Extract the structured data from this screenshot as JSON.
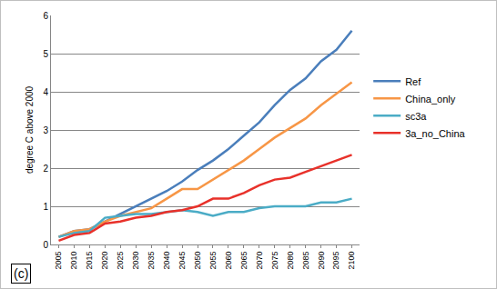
{
  "chart_data": {
    "type": "line",
    "y_label": "degree C above 2000",
    "annotations": [
      "(c)"
    ],
    "categories": [
      "2005",
      "2010",
      "2015",
      "2020",
      "2025",
      "2030",
      "2035",
      "2040",
      "2045",
      "2050",
      "2055",
      "2060",
      "2065",
      "2070",
      "2075",
      "2080",
      "2085",
      "2090",
      "2095",
      "2100"
    ],
    "series": [
      {
        "name": "Ref",
        "color": "#4a7ebb",
        "values": [
          0.2,
          0.35,
          0.4,
          0.6,
          0.8,
          1.0,
          1.2,
          1.4,
          1.65,
          1.95,
          2.2,
          2.5,
          2.85,
          3.2,
          3.65,
          4.05,
          4.35,
          4.8,
          5.1,
          5.6
        ]
      },
      {
        "name": "China_only",
        "color": "#f79646",
        "values": [
          0.2,
          0.35,
          0.4,
          0.6,
          0.75,
          0.85,
          0.95,
          1.2,
          1.45,
          1.45,
          1.7,
          1.95,
          2.2,
          2.5,
          2.8,
          3.05,
          3.3,
          3.65,
          3.95,
          4.25
        ]
      },
      {
        "name": "sc3a",
        "color": "#4bacc6",
        "values": [
          0.2,
          0.3,
          0.35,
          0.7,
          0.75,
          0.8,
          0.8,
          0.85,
          0.9,
          0.85,
          0.75,
          0.85,
          0.85,
          0.95,
          1.0,
          1.0,
          1.0,
          1.1,
          1.1,
          1.2
        ]
      },
      {
        "name": "3a_no_China",
        "color": "#e8312a",
        "values": [
          0.1,
          0.25,
          0.3,
          0.55,
          0.6,
          0.7,
          0.75,
          0.85,
          0.9,
          1.0,
          1.2,
          1.2,
          1.35,
          1.55,
          1.7,
          1.75,
          1.9,
          2.05,
          2.2,
          2.35
        ]
      }
    ],
    "ylim": [
      0,
      6
    ],
    "yticks": [
      0,
      1,
      2,
      3,
      4,
      5,
      6
    ],
    "grid": true,
    "legend": "right"
  }
}
